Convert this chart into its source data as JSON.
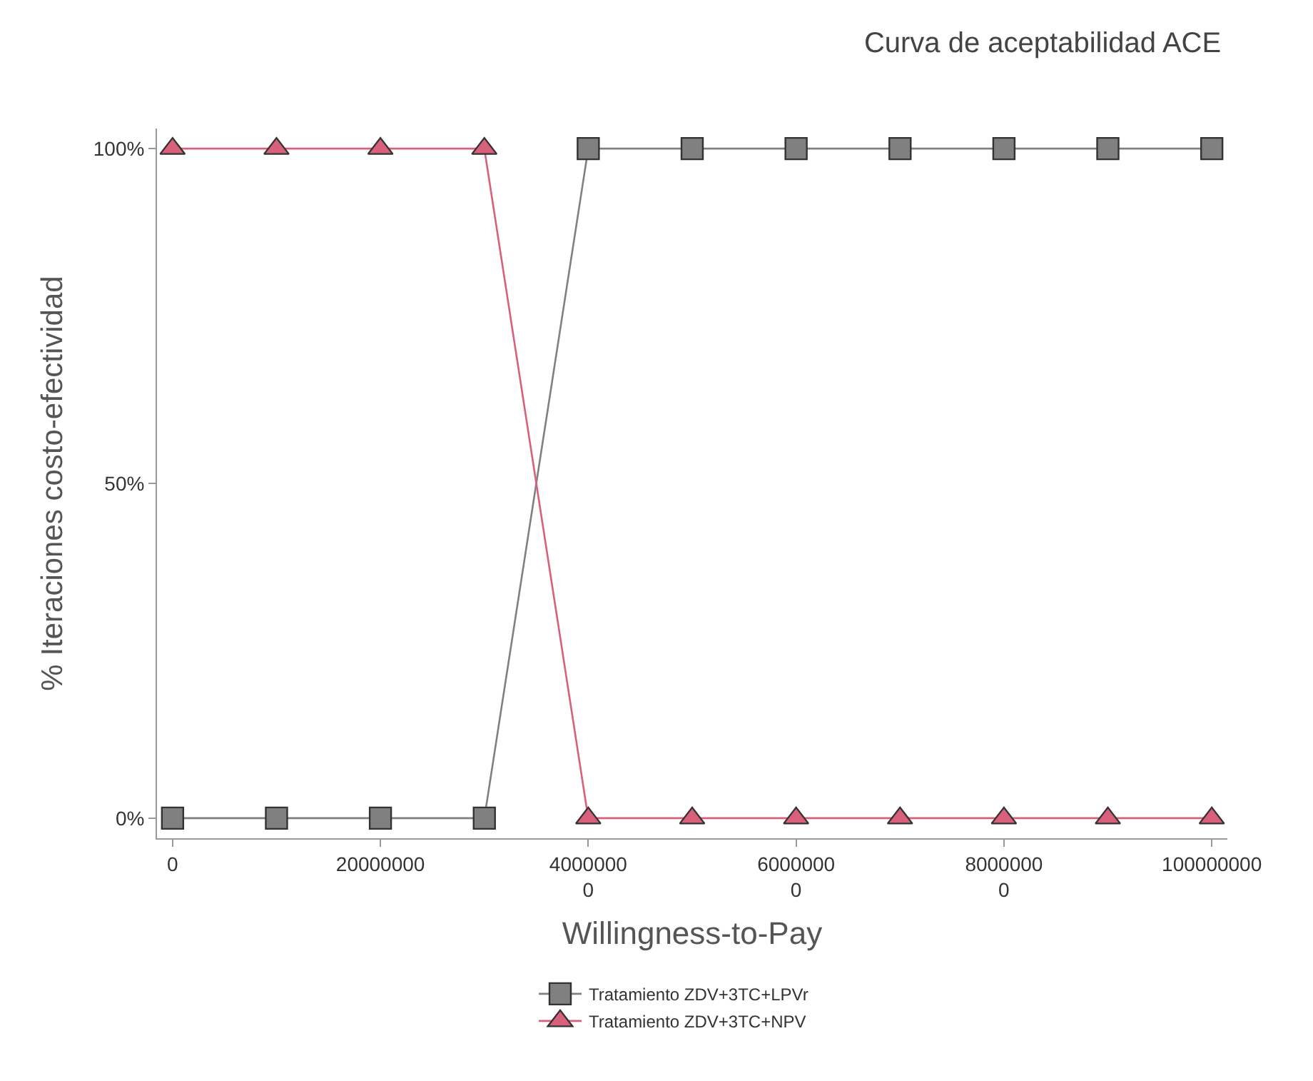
{
  "chart_data": {
    "type": "line",
    "title": "Curva de aceptabilidad ACE",
    "xlabel": "Willingness-to-Pay",
    "ylabel": "% Iteraciones costo-efectividad",
    "x": [
      0,
      10000000,
      20000000,
      30000000,
      40000000,
      50000000,
      60000000,
      70000000,
      80000000,
      90000000,
      100000000
    ],
    "xlim": [
      -1500000,
      101500000
    ],
    "xticks": [
      0,
      20000000,
      {
        "value": 40000000,
        "label": "4000000\n0"
      },
      {
        "value": 60000000,
        "label": "6000000\n0"
      },
      {
        "value": 80000000,
        "label": "8000000\n0"
      },
      100000000
    ],
    "ylim": [
      -3,
      103
    ],
    "yticks": [
      {
        "value": 0,
        "label": "0%"
      },
      {
        "value": 50,
        "label": "50%"
      },
      {
        "value": 100,
        "label": "100%"
      }
    ],
    "series": [
      {
        "name": "Tratamiento ZDV+3TC+LPVr",
        "color": "#808080",
        "marker": "square",
        "values": [
          0,
          0,
          0,
          0,
          100,
          100,
          100,
          100,
          100,
          100,
          100
        ]
      },
      {
        "name": "Tratamiento ZDV+3TC+NPV",
        "color": "#d9607a",
        "marker": "triangle",
        "values": [
          100,
          100,
          100,
          100,
          0,
          0,
          0,
          0,
          0,
          0,
          0
        ]
      }
    ],
    "legend": "bottom",
    "line_style": "solid"
  }
}
